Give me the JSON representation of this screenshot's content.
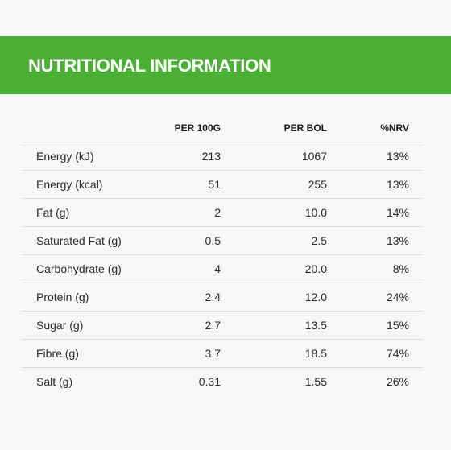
{
  "header": {
    "title": "NUTRITIONAL INFORMATION"
  },
  "table": {
    "columns": [
      "",
      "PER 100G",
      "PER BOL",
      "%NRV"
    ],
    "rows": [
      {
        "nutrient": "Energy (kJ)",
        "per_100g": "213",
        "per_bol": "1067",
        "nrv": "13%"
      },
      {
        "nutrient": "Energy (kcal)",
        "per_100g": "51",
        "per_bol": "255",
        "nrv": "13%"
      },
      {
        "nutrient": "Fat (g)",
        "per_100g": "2",
        "per_bol": "10.0",
        "nrv": "14%"
      },
      {
        "nutrient": "Saturated Fat (g)",
        "per_100g": "0.5",
        "per_bol": "2.5",
        "nrv": "13%"
      },
      {
        "nutrient": "Carbohydrate (g)",
        "per_100g": "4",
        "per_bol": "20.0",
        "nrv": "8%"
      },
      {
        "nutrient": "Protein (g)",
        "per_100g": "2.4",
        "per_bol": "12.0",
        "nrv": "24%"
      },
      {
        "nutrient": "Sugar (g)",
        "per_100g": "2.7",
        "per_bol": "13.5",
        "nrv": "15%"
      },
      {
        "nutrient": "Fibre (g)",
        "per_100g": "3.7",
        "per_bol": "18.5",
        "nrv": "74%"
      },
      {
        "nutrient": "Salt (g)",
        "per_100g": "0.31",
        "per_bol": "1.55",
        "nrv": "26%"
      }
    ]
  },
  "colors": {
    "banner": "#4caf35",
    "background": "#f7f7f7",
    "divider": "#dcdcdc"
  }
}
